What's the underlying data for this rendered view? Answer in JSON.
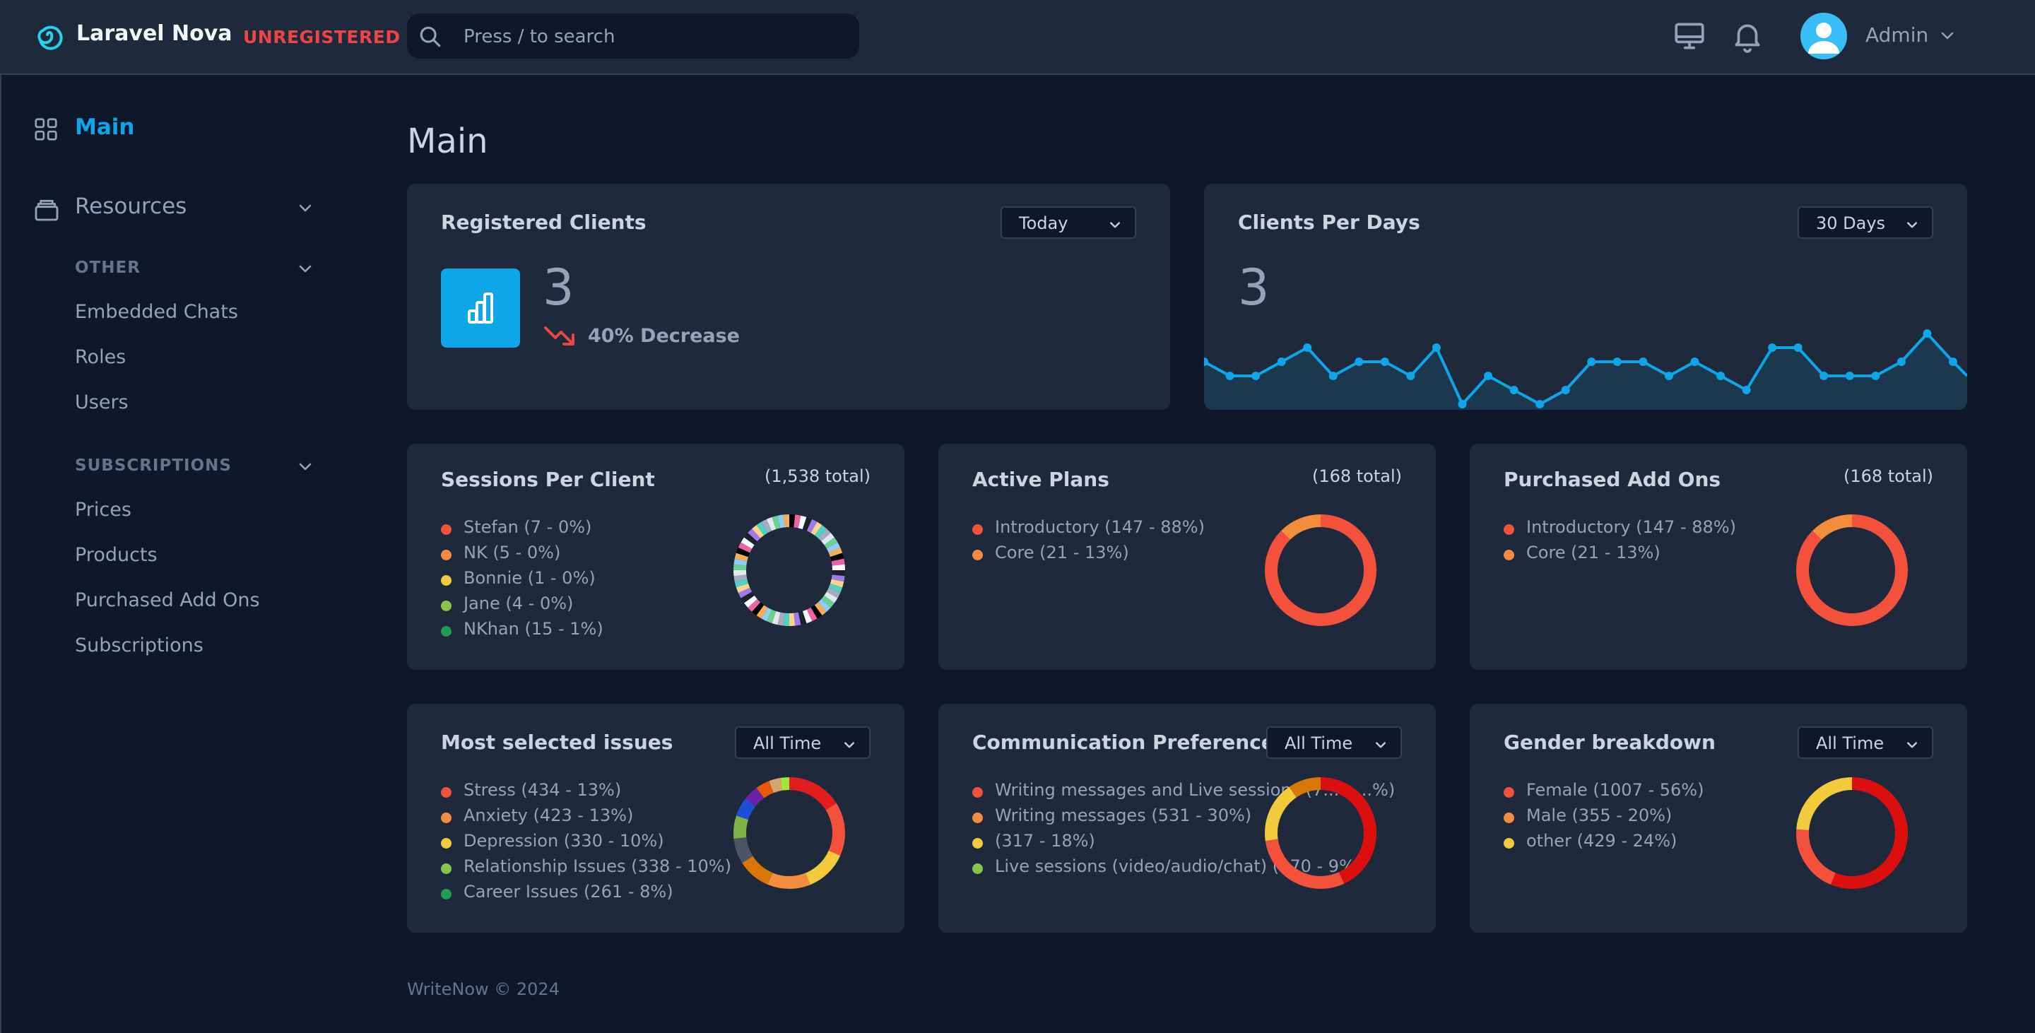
{
  "header": {
    "brand": "Laravel Nova",
    "unregistered": "UNREGISTERED",
    "search_placeholder": "Press / to search",
    "user_name": "Admin"
  },
  "sidebar": {
    "main_label": "Main",
    "resources_label": "Resources",
    "groups": [
      {
        "label": "OTHER",
        "items": [
          "Embedded Chats",
          "Roles",
          "Users"
        ]
      },
      {
        "label": "SUBSCRIPTIONS",
        "items": [
          "Prices",
          "Products",
          "Purchased Add Ons",
          "Subscriptions"
        ]
      }
    ]
  },
  "page_title": "Main",
  "footer": "WriteNow © 2024",
  "colors": {
    "accent": "#0ea5e9",
    "danger": "#ef4444",
    "palette": [
      "#f4513d",
      "#f48c3d",
      "#f2cb3d",
      "#8bc34a",
      "#1f9d55"
    ]
  },
  "cards": {
    "registered": {
      "title": "Registered Clients",
      "range": "Today",
      "value": "3",
      "trend": "40% Decrease"
    },
    "per_days": {
      "title": "Clients Per Days",
      "range": "30 Days",
      "value": "3"
    },
    "sessions": {
      "title": "Sessions Per Client",
      "total": "(1,538 total)"
    },
    "plans": {
      "title": "Active Plans",
      "total": "(168 total)"
    },
    "addons": {
      "title": "Purchased Add Ons",
      "total": "(168 total)"
    },
    "issues": {
      "title": "Most selected issues",
      "range": "All Time"
    },
    "comms": {
      "title": "Communication Preferences",
      "range": "All Time"
    },
    "gender": {
      "title": "Gender breakdown",
      "range": "All Time"
    }
  },
  "chart_data": [
    {
      "type": "line",
      "title": "Clients Per Days",
      "values": [
        3,
        2,
        2,
        3,
        4,
        2,
        3,
        3,
        2,
        4,
        0,
        2,
        1,
        0,
        1,
        3,
        3,
        3,
        2,
        3,
        2,
        1,
        4,
        4,
        2,
        2,
        2,
        3,
        5,
        3
      ],
      "ylim": [
        0,
        6
      ]
    },
    {
      "type": "pie",
      "title": "Sessions Per Client",
      "legend": [
        "Stefan (7 - 0%)",
        "NK (5 - 0%)",
        "Bonnie (1 - 0%)",
        "Jane (4 - 0%)",
        "NKhan (15 - 1%)"
      ],
      "segments": "many small segments (1,538 total)"
    },
    {
      "type": "pie",
      "title": "Active Plans",
      "legend": [
        "Introductory (147 - 88%)",
        "Core (21 - 13%)"
      ],
      "values": [
        147,
        21
      ]
    },
    {
      "type": "pie",
      "title": "Purchased Add Ons",
      "legend": [
        "Introductory (147 - 88%)",
        "Core (21 - 13%)"
      ],
      "values": [
        147,
        21
      ]
    },
    {
      "type": "pie",
      "title": "Most selected issues",
      "legend": [
        "Stress (434 - 13%)",
        "Anxiety (423 - 13%)",
        "Depression (330 - 10%)",
        "Relationship Issues (338 - 10%)",
        "Career Issues (261 - 8%)"
      ],
      "values": [
        434,
        423,
        330,
        338,
        261
      ]
    },
    {
      "type": "pie",
      "title": "Communication Preferences",
      "legend": [
        "Writing messages and Live sessions (7... - ...%)",
        "Writing messages (531 - 30%)",
        "(317 - 18%)",
        "Live sessions (video/audio/chat) (170 - 9%)"
      ],
      "values": [
        770,
        531,
        317,
        170
      ]
    },
    {
      "type": "pie",
      "title": "Gender breakdown",
      "legend": [
        "Female (1007 - 56%)",
        "Male (355 - 20%)",
        "other (429 - 24%)"
      ],
      "values": [
        1007,
        355,
        429
      ]
    }
  ]
}
